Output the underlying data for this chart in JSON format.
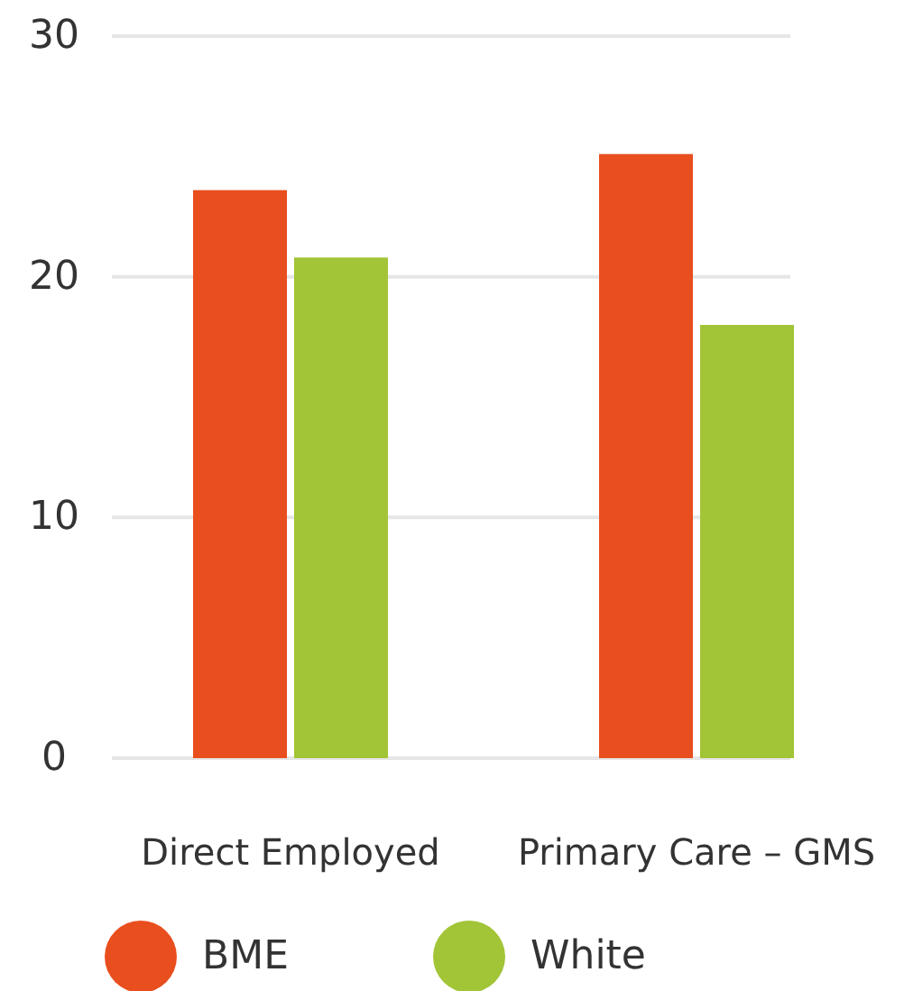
{
  "chart_data": {
    "type": "bar",
    "categories": [
      "Direct Employed",
      "Primary Care – GMS"
    ],
    "series": [
      {
        "name": "BME",
        "color": "#e94e1e",
        "values": [
          23.6,
          25.1
        ]
      },
      {
        "name": "White",
        "color": "#a2c437",
        "values": [
          20.8,
          18.0
        ]
      }
    ],
    "ylim": [
      0,
      30
    ],
    "yticks": [
      0,
      10,
      20,
      30
    ],
    "grid": "y",
    "legend": "bottom"
  }
}
